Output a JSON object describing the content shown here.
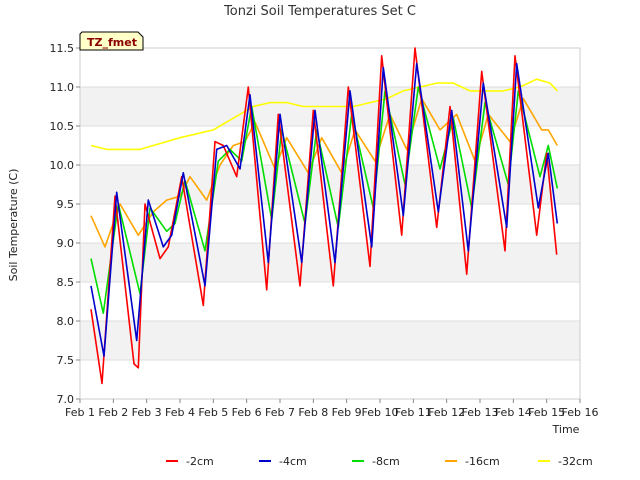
{
  "chart_data": {
    "type": "line",
    "title": "Tonzi Soil Temperatures Set C",
    "badge": "TZ_fmet",
    "xlabel": "Time",
    "ylabel": "Soil Temperature (C)",
    "xlim": [
      1,
      16
    ],
    "ylim": [
      7.0,
      11.5
    ],
    "x_ticks": [
      1,
      2,
      3,
      4,
      5,
      6,
      7,
      8,
      9,
      10,
      11,
      12,
      13,
      14,
      15,
      16
    ],
    "x_tick_labels": [
      "Feb 1",
      "Feb 2",
      "Feb 3",
      "Feb 4",
      "Feb 5",
      "Feb 6",
      "Feb 7",
      "Feb 8",
      "Feb 9",
      "Feb 10",
      "Feb 11",
      "Feb 12",
      "Feb 13",
      "Feb 14",
      "Feb 15",
      "Feb 16"
    ],
    "y_ticks": [
      7.0,
      7.5,
      8.0,
      8.5,
      9.0,
      9.5,
      10.0,
      10.5,
      11.0,
      11.5
    ],
    "y_tick_labels": [
      "7.0",
      "7.5",
      "8.0",
      "8.5",
      "9.0",
      "9.5",
      "10.0",
      "10.5",
      "11.0",
      "11.5"
    ],
    "grid": true,
    "legend_position": "bottom",
    "series": [
      {
        "name": "-2cm",
        "color": "#ff0000",
        "points": [
          [
            1.33,
            8.15
          ],
          [
            1.66,
            7.2
          ],
          [
            2.05,
            9.6
          ],
          [
            2.62,
            7.45
          ],
          [
            2.75,
            7.4
          ],
          [
            2.95,
            9.5
          ],
          [
            3.4,
            8.8
          ],
          [
            3.65,
            8.95
          ],
          [
            4.05,
            9.85
          ],
          [
            4.7,
            8.2
          ],
          [
            5.05,
            10.3
          ],
          [
            5.3,
            10.25
          ],
          [
            5.7,
            9.85
          ],
          [
            6.05,
            11.0
          ],
          [
            6.6,
            8.4
          ],
          [
            6.95,
            10.65
          ],
          [
            7.6,
            8.45
          ],
          [
            8.0,
            10.7
          ],
          [
            8.6,
            8.45
          ],
          [
            9.05,
            11.0
          ],
          [
            9.7,
            8.7
          ],
          [
            10.05,
            11.4
          ],
          [
            10.65,
            9.1
          ],
          [
            11.05,
            11.5
          ],
          [
            11.7,
            9.2
          ],
          [
            12.1,
            10.75
          ],
          [
            12.6,
            8.6
          ],
          [
            13.05,
            11.2
          ],
          [
            13.75,
            8.9
          ],
          [
            14.05,
            11.4
          ],
          [
            14.7,
            9.1
          ],
          [
            15.0,
            10.15
          ],
          [
            15.3,
            8.85
          ]
        ]
      },
      {
        "name": "-4cm",
        "color": "#0000cc",
        "points": [
          [
            1.33,
            8.45
          ],
          [
            1.72,
            7.55
          ],
          [
            2.1,
            9.65
          ],
          [
            2.7,
            7.75
          ],
          [
            3.05,
            9.55
          ],
          [
            3.5,
            8.95
          ],
          [
            3.75,
            9.1
          ],
          [
            4.1,
            9.9
          ],
          [
            4.75,
            8.45
          ],
          [
            5.1,
            10.2
          ],
          [
            5.4,
            10.25
          ],
          [
            5.8,
            9.95
          ],
          [
            6.1,
            10.9
          ],
          [
            6.65,
            8.75
          ],
          [
            7.0,
            10.65
          ],
          [
            7.65,
            8.75
          ],
          [
            8.05,
            10.7
          ],
          [
            8.65,
            8.75
          ],
          [
            9.1,
            10.95
          ],
          [
            9.75,
            8.95
          ],
          [
            10.1,
            11.25
          ],
          [
            10.7,
            9.35
          ],
          [
            11.1,
            11.3
          ],
          [
            11.75,
            9.4
          ],
          [
            12.15,
            10.7
          ],
          [
            12.65,
            8.9
          ],
          [
            13.1,
            11.05
          ],
          [
            13.8,
            9.2
          ],
          [
            14.1,
            11.3
          ],
          [
            14.75,
            9.45
          ],
          [
            15.05,
            10.15
          ],
          [
            15.32,
            9.25
          ]
        ]
      },
      {
        "name": "-8cm",
        "color": "#00dd00",
        "points": [
          [
            1.33,
            8.8
          ],
          [
            1.7,
            8.1
          ],
          [
            2.15,
            9.5
          ],
          [
            2.8,
            8.35
          ],
          [
            3.1,
            9.45
          ],
          [
            3.6,
            9.15
          ],
          [
            3.85,
            9.25
          ],
          [
            4.15,
            9.8
          ],
          [
            4.75,
            8.9
          ],
          [
            5.15,
            10.05
          ],
          [
            5.5,
            10.2
          ],
          [
            5.85,
            10.05
          ],
          [
            6.15,
            10.75
          ],
          [
            6.75,
            9.3
          ],
          [
            7.05,
            10.45
          ],
          [
            7.75,
            9.25
          ],
          [
            8.1,
            10.45
          ],
          [
            8.75,
            9.2
          ],
          [
            9.15,
            10.65
          ],
          [
            9.8,
            9.45
          ],
          [
            10.15,
            10.95
          ],
          [
            10.75,
            9.75
          ],
          [
            11.15,
            11.0
          ],
          [
            11.8,
            9.95
          ],
          [
            12.2,
            10.6
          ],
          [
            12.75,
            9.45
          ],
          [
            13.15,
            10.8
          ],
          [
            13.85,
            9.75
          ],
          [
            14.15,
            10.95
          ],
          [
            14.8,
            9.85
          ],
          [
            15.05,
            10.25
          ],
          [
            15.32,
            9.7
          ]
        ]
      },
      {
        "name": "-16cm",
        "color": "#ffa500",
        "points": [
          [
            1.33,
            9.35
          ],
          [
            1.75,
            8.95
          ],
          [
            2.2,
            9.5
          ],
          [
            2.75,
            9.1
          ],
          [
            3.2,
            9.4
          ],
          [
            3.6,
            9.55
          ],
          [
            4.0,
            9.6
          ],
          [
            4.3,
            9.85
          ],
          [
            4.8,
            9.55
          ],
          [
            5.2,
            10.0
          ],
          [
            5.6,
            10.25
          ],
          [
            5.95,
            10.3
          ],
          [
            6.25,
            10.55
          ],
          [
            6.85,
            9.95
          ],
          [
            7.2,
            10.35
          ],
          [
            7.85,
            9.9
          ],
          [
            8.25,
            10.35
          ],
          [
            8.85,
            9.9
          ],
          [
            9.25,
            10.45
          ],
          [
            9.85,
            10.05
          ],
          [
            10.3,
            10.65
          ],
          [
            10.8,
            10.2
          ],
          [
            11.25,
            10.85
          ],
          [
            11.8,
            10.45
          ],
          [
            12.3,
            10.65
          ],
          [
            12.85,
            10.05
          ],
          [
            13.25,
            10.65
          ],
          [
            13.9,
            10.3
          ],
          [
            14.3,
            10.85
          ],
          [
            14.85,
            10.45
          ],
          [
            15.05,
            10.45
          ],
          [
            15.32,
            10.25
          ]
        ]
      },
      {
        "name": "-32cm",
        "color": "#ffff00",
        "points": [
          [
            1.33,
            10.25
          ],
          [
            1.8,
            10.2
          ],
          [
            2.4,
            10.2
          ],
          [
            2.8,
            10.2
          ],
          [
            3.2,
            10.25
          ],
          [
            3.6,
            10.3
          ],
          [
            4.0,
            10.35
          ],
          [
            4.5,
            10.4
          ],
          [
            5.0,
            10.45
          ],
          [
            5.4,
            10.55
          ],
          [
            5.8,
            10.65
          ],
          [
            6.2,
            10.75
          ],
          [
            6.7,
            10.8
          ],
          [
            7.2,
            10.8
          ],
          [
            7.7,
            10.75
          ],
          [
            8.2,
            10.75
          ],
          [
            8.7,
            10.75
          ],
          [
            9.2,
            10.75
          ],
          [
            9.7,
            10.8
          ],
          [
            10.2,
            10.85
          ],
          [
            10.7,
            10.95
          ],
          [
            11.2,
            11.0
          ],
          [
            11.7,
            11.05
          ],
          [
            12.2,
            11.05
          ],
          [
            12.7,
            10.95
          ],
          [
            13.2,
            10.95
          ],
          [
            13.7,
            10.95
          ],
          [
            14.2,
            11.0
          ],
          [
            14.7,
            11.1
          ],
          [
            15.1,
            11.05
          ],
          [
            15.32,
            10.95
          ]
        ]
      }
    ]
  }
}
